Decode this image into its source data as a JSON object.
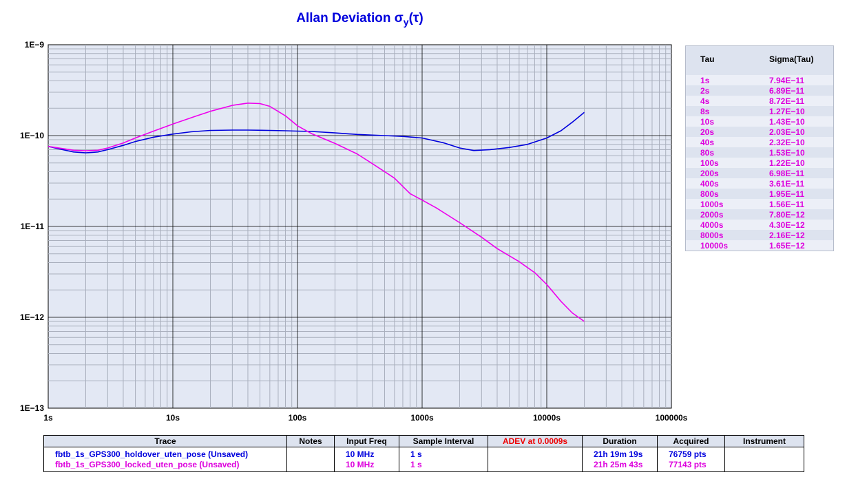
{
  "colors": {
    "series1": "#0000dd",
    "series2": "#ee00ee",
    "plot_bg": "#e3e8f4",
    "adev_header": "#ee0000"
  },
  "chart_data": {
    "type": "line",
    "title": "Allan Deviation",
    "title_symbol": "σ",
    "title_sub": "y",
    "title_arg": "(τ)",
    "x_scale": "log",
    "y_scale": "log",
    "xlim": [
      1,
      100000
    ],
    "ylim": [
      1e-13,
      1e-09
    ],
    "x_tick_labels": [
      "1s",
      "10s",
      "100s",
      "1000s",
      "10000s",
      "100000s"
    ],
    "y_tick_labels": [
      "1E−9",
      "1E−10",
      "1E−11",
      "1E−12",
      "1E−13"
    ],
    "grid": true,
    "series": [
      {
        "name": "fbtb_1s_GPS300_holdover_uten_pose",
        "color": "#0000dd",
        "points": [
          [
            1,
            7.6e-11
          ],
          [
            1.3,
            7e-11
          ],
          [
            1.6,
            6.6e-11
          ],
          [
            2,
            6.45e-11
          ],
          [
            2.5,
            6.6e-11
          ],
          [
            3,
            7e-11
          ],
          [
            4,
            7.8e-11
          ],
          [
            5,
            8.6e-11
          ],
          [
            7,
            9.6e-11
          ],
          [
            10,
            1.04e-10
          ],
          [
            14,
            1.1e-10
          ],
          [
            20,
            1.14e-10
          ],
          [
            30,
            1.15e-10
          ],
          [
            40,
            1.15e-10
          ],
          [
            60,
            1.14e-10
          ],
          [
            80,
            1.13e-10
          ],
          [
            100,
            1.12e-10
          ],
          [
            130,
            1.11e-10
          ],
          [
            200,
            1.07e-10
          ],
          [
            300,
            1.03e-10
          ],
          [
            500,
            1e-10
          ],
          [
            700,
            9.8e-11
          ],
          [
            1000,
            9.4e-11
          ],
          [
            1500,
            8.3e-11
          ],
          [
            2000,
            7.3e-11
          ],
          [
            2600,
            6.85e-11
          ],
          [
            3500,
            7e-11
          ],
          [
            5000,
            7.4e-11
          ],
          [
            7000,
            8e-11
          ],
          [
            10000,
            9.4e-11
          ],
          [
            13000,
            1.13e-10
          ],
          [
            16000,
            1.4e-10
          ],
          [
            20000,
            1.8e-10
          ]
        ]
      },
      {
        "name": "fbtb_1s_GPS300_locked_uten_pose",
        "color": "#ee00ee",
        "points": [
          [
            1,
            7.6e-11
          ],
          [
            1.3,
            7.2e-11
          ],
          [
            1.6,
            6.9e-11
          ],
          [
            2,
            6.8e-11
          ],
          [
            2.5,
            6.9e-11
          ],
          [
            3,
            7.3e-11
          ],
          [
            4,
            8.3e-11
          ],
          [
            5,
            9.4e-11
          ],
          [
            7,
            1.12e-10
          ],
          [
            10,
            1.34e-10
          ],
          [
            15,
            1.62e-10
          ],
          [
            20,
            1.85e-10
          ],
          [
            30,
            2.15e-10
          ],
          [
            40,
            2.28e-10
          ],
          [
            50,
            2.25e-10
          ],
          [
            60,
            2.1e-10
          ],
          [
            80,
            1.65e-10
          ],
          [
            100,
            1.28e-10
          ],
          [
            130,
            1.05e-10
          ],
          [
            200,
            8.2e-11
          ],
          [
            300,
            6.3e-11
          ],
          [
            400,
            4.9e-11
          ],
          [
            600,
            3.4e-11
          ],
          [
            800,
            2.3e-11
          ],
          [
            1000,
            1.95e-11
          ],
          [
            1300,
            1.6e-11
          ],
          [
            2000,
            1.1e-11
          ],
          [
            3000,
            7.6e-12
          ],
          [
            4000,
            5.7e-12
          ],
          [
            6000,
            4.1e-12
          ],
          [
            8000,
            3.1e-12
          ],
          [
            10000,
            2.3e-12
          ],
          [
            13000,
            1.5e-12
          ],
          [
            16000,
            1.12e-12
          ],
          [
            20000,
            9e-13
          ]
        ]
      }
    ]
  },
  "sigma_table": {
    "headers": [
      "Tau",
      "Sigma(Tau)"
    ],
    "rows": [
      [
        "1s",
        "7.94E−11"
      ],
      [
        "2s",
        "6.89E−11"
      ],
      [
        "4s",
        "8.72E−11"
      ],
      [
        "8s",
        "1.27E−10"
      ],
      [
        "10s",
        "1.43E−10"
      ],
      [
        "20s",
        "2.03E−10"
      ],
      [
        "40s",
        "2.32E−10"
      ],
      [
        "80s",
        "1.53E−10"
      ],
      [
        "100s",
        "1.22E−10"
      ],
      [
        "200s",
        "6.98E−11"
      ],
      [
        "400s",
        "3.61E−11"
      ],
      [
        "800s",
        "1.95E−11"
      ],
      [
        "1000s",
        "1.56E−11"
      ],
      [
        "2000s",
        "7.80E−12"
      ],
      [
        "4000s",
        "4.30E−12"
      ],
      [
        "8000s",
        "2.16E−12"
      ],
      [
        "10000s",
        "1.65E−12"
      ]
    ]
  },
  "trace_table": {
    "headers": [
      "Trace",
      "Notes",
      "Input Freq",
      "Sample Interval",
      "ADEV at 0.0009s",
      "Duration",
      "Acquired",
      "Instrument"
    ],
    "rows": [
      {
        "trace": "fbtb_1s_GPS300_holdover_uten_pose  (Unsaved)",
        "notes": "",
        "input_freq": "10 MHz",
        "sample_interval": "1 s",
        "adev": "",
        "duration": "21h 19m 19s",
        "acquired": "76759 pts",
        "instrument": ""
      },
      {
        "trace": "fbtb_1s_GPS300_locked_uten_pose  (Unsaved)",
        "notes": "",
        "input_freq": "10 MHz",
        "sample_interval": "1 s",
        "adev": "",
        "duration": "21h 25m 43s",
        "acquired": "77143 pts",
        "instrument": ""
      }
    ]
  }
}
